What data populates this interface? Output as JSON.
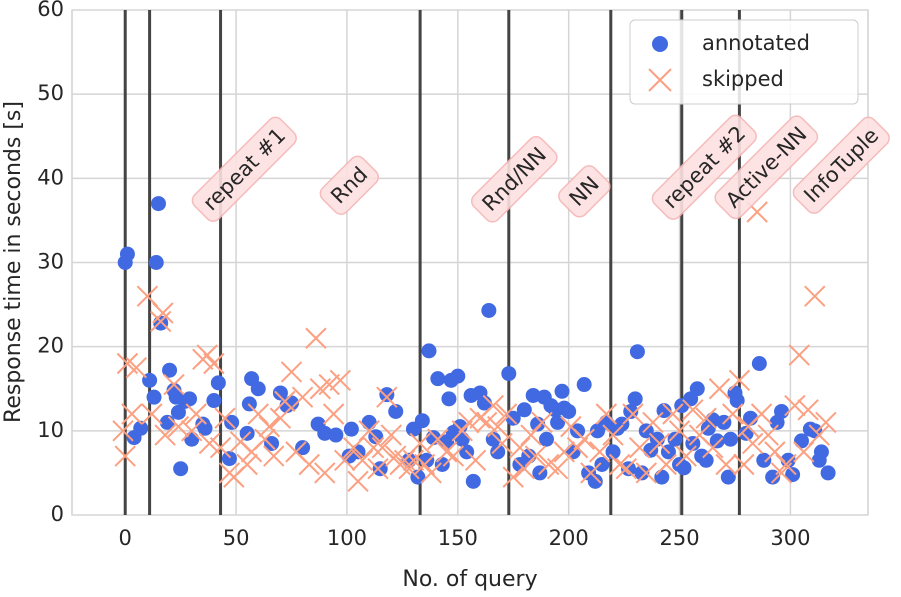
{
  "chart_data": {
    "type": "scatter",
    "xlabel": "No. of query",
    "ylabel": "Response time in seconds [s]",
    "xlim": [
      -24,
      335
    ],
    "ylim": [
      0,
      60
    ],
    "xticks": [
      0,
      50,
      100,
      150,
      200,
      250,
      300
    ],
    "yticks": [
      0,
      10,
      20,
      30,
      40,
      50,
      60
    ],
    "grid": true,
    "legend": "upper right",
    "vlines": [
      0,
      11,
      43,
      133,
      173,
      219,
      251,
      277
    ],
    "vline_color": "#444444",
    "annotations": [
      "repeat #1",
      "Rnd",
      "Rnd/NN",
      "NN",
      "repeat #2",
      "Active-NN",
      "InfoTuple"
    ],
    "series": [
      {
        "name": "annotated",
        "color": "#4169e1",
        "marker": "o",
        "x": [
          0,
          1,
          4,
          7,
          11,
          13,
          14,
          15,
          16,
          19,
          20,
          22,
          23,
          24,
          25,
          27,
          29,
          30,
          35,
          36,
          40,
          42,
          47,
          48,
          55,
          56,
          57,
          60,
          66,
          70,
          73,
          75,
          80,
          87,
          90,
          95,
          101,
          102,
          105,
          110,
          113,
          115,
          118,
          122,
          128,
          130,
          132,
          134,
          136,
          137,
          139,
          141,
          143,
          145,
          146,
          147,
          148,
          150,
          151,
          152,
          154,
          156,
          157,
          160,
          162,
          164,
          166,
          168,
          173,
          175,
          178,
          180,
          182,
          184,
          186,
          187,
          189,
          190,
          192,
          194,
          195,
          197,
          198,
          200,
          202,
          204,
          207,
          209,
          212,
          213,
          215,
          217,
          220,
          222,
          224,
          227,
          228,
          230,
          231,
          233,
          235,
          237,
          240,
          242,
          243,
          245,
          248,
          250,
          251,
          252,
          255,
          256,
          258,
          260,
          262,
          263,
          265,
          267,
          270,
          272,
          273,
          275,
          276,
          280,
          282,
          286,
          288,
          292,
          294,
          296,
          299,
          301,
          305,
          309,
          311,
          313,
          314,
          317
        ],
        "values": [
          30,
          31,
          9.2,
          10.3,
          16,
          14,
          30,
          37,
          22.8,
          11,
          17.2,
          14.8,
          14,
          12.2,
          5.5,
          13.5,
          13.8,
          9,
          10.8,
          10.3,
          13.6,
          15.7,
          6.7,
          11,
          9.7,
          13.2,
          16.2,
          15,
          8.5,
          14.5,
          13,
          13.3,
          8,
          10.8,
          9.7,
          9.5,
          7,
          10.2,
          7.5,
          11,
          9.3,
          5.5,
          14.3,
          12.3,
          6.5,
          10.2,
          4.5,
          11.2,
          6.5,
          19.5,
          9.2,
          16.2,
          6,
          8.7,
          13.8,
          16,
          9.8,
          16.5,
          10.5,
          9,
          7.5,
          14.2,
          4,
          14.5,
          13.3,
          24.3,
          9,
          7.5,
          16.8,
          11.5,
          6,
          12.5,
          7,
          14.2,
          10.8,
          5,
          14,
          9,
          13,
          12.5,
          11,
          14.7,
          12.7,
          12.3,
          7.5,
          10,
          15.5,
          5,
          4,
          10,
          6,
          11,
          7.5,
          10.3,
          10.8,
          5.5,
          12.3,
          13.8,
          19.4,
          5,
          10,
          7.7,
          9,
          4.5,
          12.4,
          7.5,
          9,
          6,
          13,
          5.6,
          13.8,
          8.5,
          15,
          7,
          6.5,
          10.3,
          11.3,
          8.8,
          11,
          4.5,
          9,
          14.5,
          13.6,
          9.7,
          11.5,
          18,
          6.5,
          4.5,
          11,
          12.3,
          6.5,
          4.8,
          8.8,
          10.2,
          10,
          6.5,
          7.5,
          5
        ]
      },
      {
        "name": "skipped",
        "color": "#fca082",
        "marker": "x",
        "x": [
          -1,
          0,
          1,
          3,
          5,
          10,
          12,
          16,
          17,
          18,
          22,
          24,
          30,
          32,
          35,
          37,
          38,
          40,
          43,
          45,
          47,
          49,
          52,
          55,
          57,
          60,
          63,
          65,
          67,
          70,
          72,
          75,
          77,
          80,
          83,
          86,
          88,
          90,
          92,
          94,
          97,
          99,
          103,
          105,
          107,
          110,
          112,
          114,
          116,
          118,
          120,
          122,
          124,
          126,
          128,
          130,
          133,
          135,
          138,
          141,
          145,
          148,
          152,
          155,
          158,
          160,
          163,
          166,
          168,
          170,
          172,
          175,
          178,
          180,
          183,
          185,
          188,
          191,
          195,
          198,
          201,
          204,
          207,
          210,
          214,
          217,
          220,
          223,
          226,
          229,
          232,
          235,
          238,
          241,
          244,
          247,
          250,
          253,
          256,
          259,
          262,
          265,
          268,
          271,
          274,
          277,
          279,
          281,
          283,
          285,
          287,
          290,
          293,
          296,
          298,
          302,
          304,
          306,
          308,
          311,
          313,
          316
        ],
        "values": [
          10,
          7,
          18,
          12,
          17.5,
          26,
          12,
          23,
          24,
          9.5,
          15.5,
          10.5,
          10,
          12,
          18.5,
          19,
          8.5,
          18,
          8,
          11.5,
          5,
          4.5,
          8.7,
          6,
          7.5,
          12,
          9,
          10.5,
          7,
          11.5,
          13.5,
          17,
          7.5,
          14,
          6,
          21,
          15,
          5,
          15.5,
          12,
          16,
          6.5,
          8,
          4,
          6.5,
          10,
          8,
          5.5,
          8,
          14,
          9.5,
          7,
          6,
          6.5,
          5.5,
          6.5,
          8.5,
          6,
          5,
          9,
          7.5,
          7,
          10,
          11,
          6.5,
          11.5,
          11,
          13,
          10.5,
          8.5,
          12,
          4.5,
          8,
          5.5,
          9.5,
          7,
          11,
          6,
          5.5,
          7.5,
          10.5,
          8,
          9,
          5,
          7.5,
          12,
          9.5,
          6,
          5.5,
          12,
          8,
          5,
          11,
          8.5,
          6,
          12,
          10,
          7,
          12.5,
          9.5,
          11.5,
          8,
          15,
          6,
          12,
          16,
          6,
          10.5,
          8.5,
          36,
          12,
          9.5,
          7.5,
          5,
          6,
          13,
          19,
          7.5,
          12.5,
          26,
          9.5,
          11
        ]
      }
    ]
  }
}
